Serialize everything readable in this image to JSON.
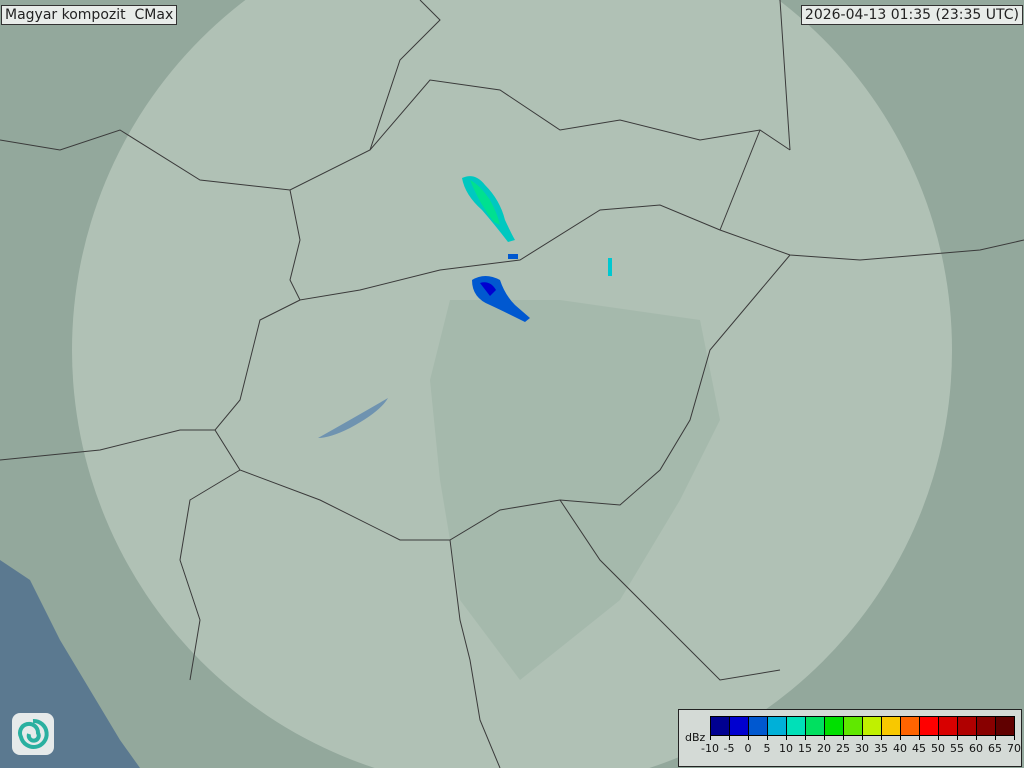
{
  "title": "Magyar kompozit  CMax",
  "timestamp": "2026-04-13 01:35 (23:35 UTC)",
  "legend": {
    "unit": "dBz",
    "labels": [
      "-10",
      "-5",
      "0",
      "5",
      "10",
      "15",
      "20",
      "25",
      "30",
      "35",
      "40",
      "45",
      "50",
      "55",
      "60",
      "65",
      "70"
    ],
    "colors": [
      "#000090",
      "#0000d0",
      "#0058d0",
      "#00b0d8",
      "#00e0b8",
      "#00e060",
      "#00e000",
      "#60e800",
      "#c0f000",
      "#f8c800",
      "#ff6400",
      "#ff0000",
      "#d80000",
      "#b00000",
      "#880000",
      "#600000"
    ]
  },
  "logo": {
    "icon": "spiral-logo-icon"
  },
  "map": {
    "background": "#93a89c",
    "radar_coverage": "#c4d2c6",
    "sea": "#5b7990",
    "border": "#3a3a3a"
  }
}
